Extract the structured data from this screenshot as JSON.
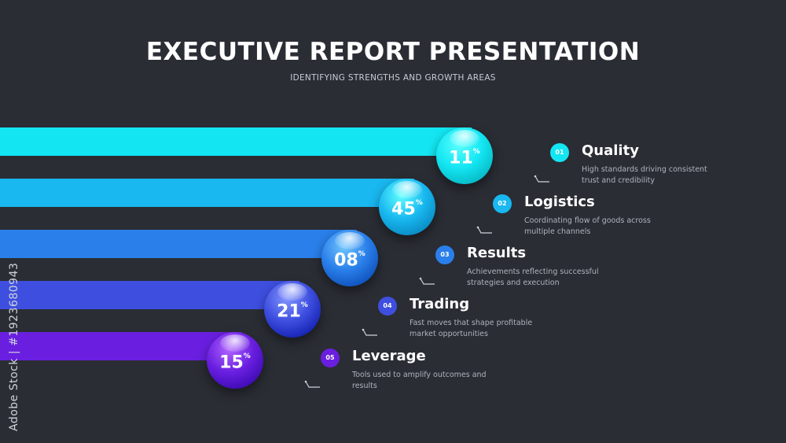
{
  "header": {
    "title": "EXECUTIVE REPORT PRESENTATION",
    "subtitle": "IDENTIFYING STRENGTHS AND GROWTH AREAS"
  },
  "items": [
    {
      "num": "01",
      "value": "11",
      "unit": "%",
      "title": "Quality",
      "desc": "High standards driving consistent trust and credibility",
      "color": "#13e6f2"
    },
    {
      "num": "02",
      "value": "45",
      "unit": "%",
      "title": "Logistics",
      "desc": "Coordinating flow of goods across multiple channels",
      "color": "#19b8f0"
    },
    {
      "num": "03",
      "value": "08",
      "unit": "%",
      "title": "Results",
      "desc": "Achievements reflecting successful strategies and execution",
      "color": "#2a7fea"
    },
    {
      "num": "04",
      "value": "21",
      "unit": "%",
      "title": "Trading",
      "desc": "Fast moves that shape profitable market opportunities",
      "color": "#3e4fe0"
    },
    {
      "num": "05",
      "value": "15",
      "unit": "%",
      "title": "Leverage",
      "desc": "Tools used to amplify outcomes and results",
      "color": "#6a1fe0"
    }
  ],
  "watermark": {
    "vertical_id": "Adobe Stock | #1923680943"
  }
}
